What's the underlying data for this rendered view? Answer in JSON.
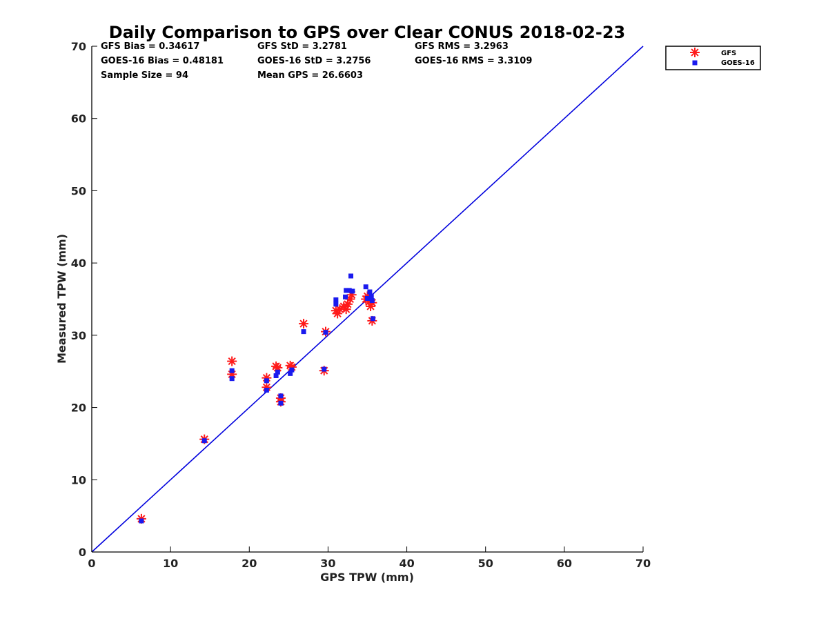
{
  "chart_data": {
    "type": "scatter",
    "title": "Daily Comparison to GPS over Clear CONUS 2018-02-23",
    "xlabel": "GPS TPW (mm)",
    "ylabel": "Measured TPW (mm)",
    "xlim": [
      0,
      70
    ],
    "ylim": [
      0,
      70
    ],
    "xticks": [
      "0",
      "10",
      "20",
      "30",
      "40",
      "50",
      "60",
      "70"
    ],
    "yticks": [
      "0",
      "10",
      "20",
      "30",
      "40",
      "50",
      "60",
      "70"
    ],
    "grid": false,
    "legend_position": "outside-top-right",
    "stats": [
      [
        "GFS Bias = 0.34617",
        "GFS StD = 3.2781",
        "GFS RMS = 3.2963"
      ],
      [
        "GOES-16 Bias = 0.48181",
        "GOES-16 StD = 3.2756",
        "GOES-16 RMS = 3.3109"
      ],
      [
        "Sample Size = 94",
        "Mean GPS = 26.6603"
      ]
    ],
    "reference_line": {
      "name": "1:1 line",
      "color": "#0000dd",
      "x": [
        0,
        70
      ],
      "y": [
        0,
        70
      ]
    },
    "series": [
      {
        "name": "GFS",
        "marker": "asterisk",
        "color": "#ff1a1a",
        "points": [
          [
            6.3,
            4.6
          ],
          [
            14.3,
            15.6
          ],
          [
            17.8,
            26.4
          ],
          [
            17.8,
            24.6
          ],
          [
            22.2,
            24.1
          ],
          [
            22.2,
            22.8
          ],
          [
            23.4,
            25.7
          ],
          [
            23.6,
            25.5
          ],
          [
            24.0,
            21.3
          ],
          [
            24.0,
            20.8
          ],
          [
            25.2,
            25.8
          ],
          [
            25.4,
            25.6
          ],
          [
            26.9,
            31.6
          ],
          [
            29.5,
            25.1
          ],
          [
            29.7,
            30.5
          ],
          [
            31.0,
            33.4
          ],
          [
            31.2,
            33.0
          ],
          [
            31.5,
            33.6
          ],
          [
            32.0,
            34.0
          ],
          [
            32.3,
            33.6
          ],
          [
            32.5,
            34.3
          ],
          [
            32.8,
            35.0
          ],
          [
            33.0,
            35.6
          ],
          [
            34.8,
            35.0
          ],
          [
            35.0,
            35.4
          ],
          [
            35.2,
            34.6
          ],
          [
            35.4,
            34.0
          ],
          [
            35.6,
            34.5
          ],
          [
            35.6,
            32.0
          ]
        ]
      },
      {
        "name": "GOES-16",
        "marker": "square",
        "color": "#1a1aee",
        "points": [
          [
            6.3,
            4.3
          ],
          [
            14.3,
            15.4
          ],
          [
            17.8,
            25.1
          ],
          [
            17.8,
            24.0
          ],
          [
            22.2,
            23.7
          ],
          [
            22.2,
            22.4
          ],
          [
            23.4,
            24.4
          ],
          [
            23.6,
            24.9
          ],
          [
            24.0,
            21.6
          ],
          [
            24.0,
            20.6
          ],
          [
            25.2,
            24.7
          ],
          [
            25.4,
            25.2
          ],
          [
            26.9,
            30.5
          ],
          [
            29.5,
            25.3
          ],
          [
            29.7,
            30.4
          ],
          [
            31.0,
            34.3
          ],
          [
            31.0,
            34.9
          ],
          [
            32.2,
            35.3
          ],
          [
            32.3,
            36.2
          ],
          [
            32.7,
            36.2
          ],
          [
            32.9,
            38.2
          ],
          [
            33.1,
            36.1
          ],
          [
            34.8,
            36.7
          ],
          [
            35.0,
            35.1
          ],
          [
            35.3,
            36.0
          ],
          [
            35.5,
            35.4
          ],
          [
            35.6,
            34.8
          ],
          [
            35.7,
            32.3
          ]
        ]
      }
    ]
  }
}
